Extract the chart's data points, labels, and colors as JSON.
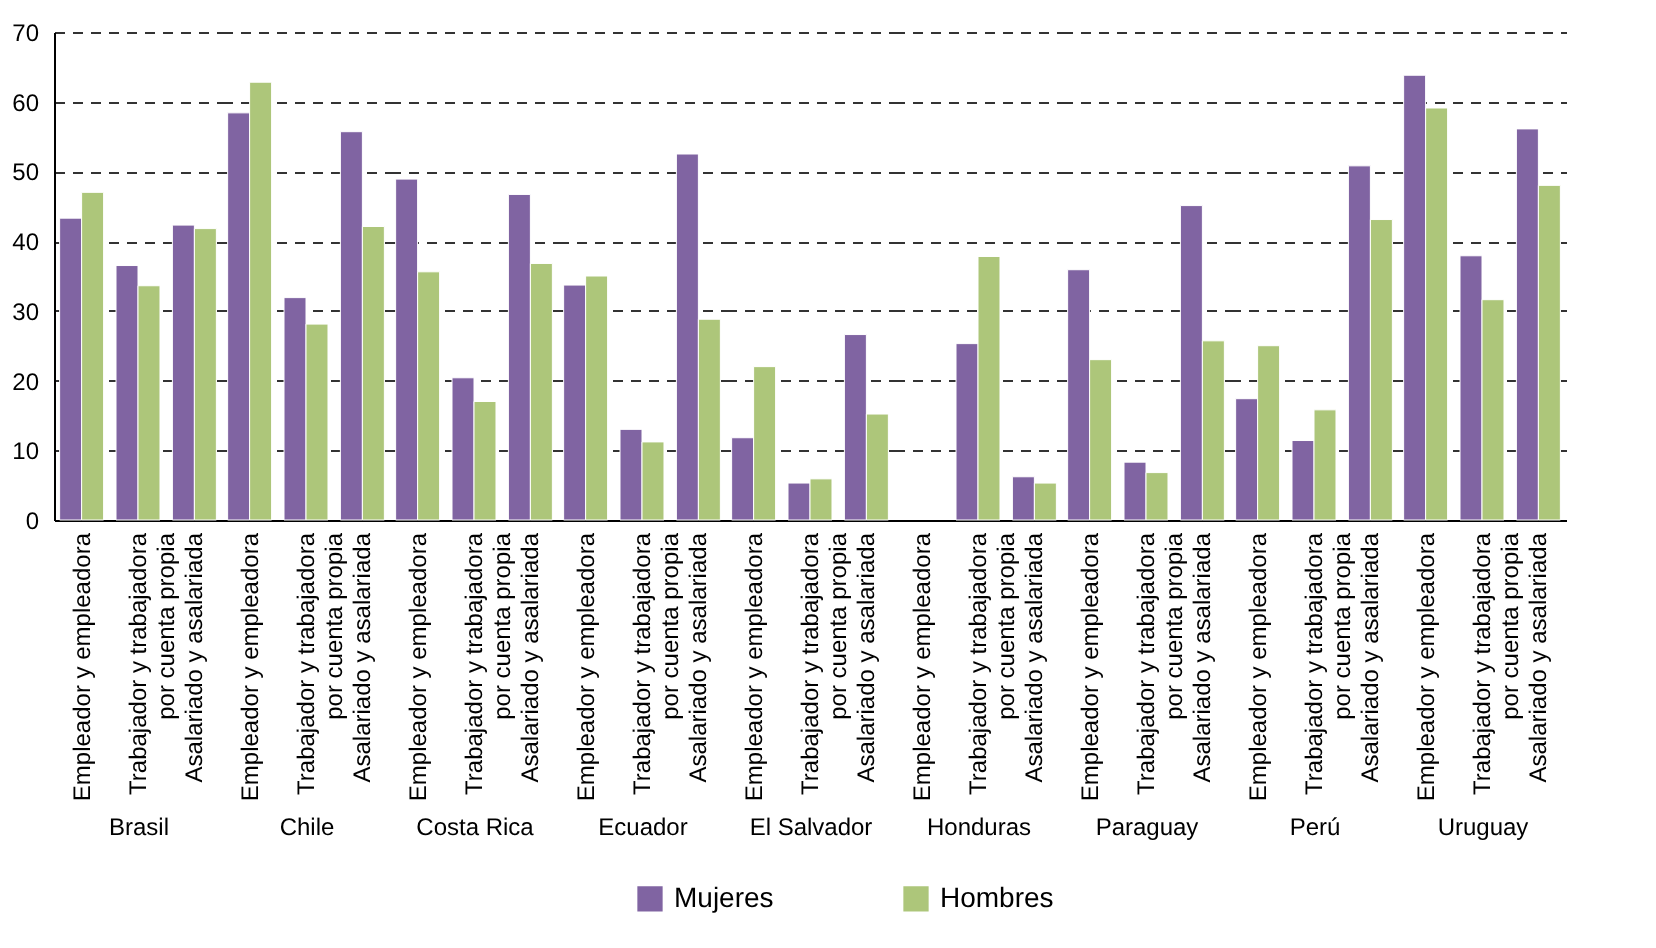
{
  "chart_data": [
    {
      "type": "bar",
      "xlabel": "Brasil",
      "categories": [
        "Empleador y empleadora",
        "Trabajador y trabajadora por cuenta propia",
        "Asalariado y asalariada"
      ],
      "series": [
        {
          "name": "Mujeres",
          "color": "#8064a2",
          "values": [
            43.3,
            36.5,
            42.3
          ]
        },
        {
          "name": "Hombres",
          "color": "#adc67a",
          "values": [
            47.0,
            33.6,
            41.8
          ]
        }
      ],
      "ylim": [
        0,
        70
      ],
      "yticks": [
        0,
        10,
        20,
        30,
        40,
        50,
        60,
        70
      ],
      "grid": "y",
      "legend": "bottom"
    },
    {
      "type": "bar",
      "xlabel": "Chile",
      "categories": [
        "Empleador y empleadora",
        "Trabajador y trabajadora por cuenta propia",
        "Asalariado y asalariada"
      ],
      "series": [
        {
          "color": "#8064a2",
          "values": [
            58.4,
            31.9,
            55.7
          ]
        },
        {
          "color": "#adc67a",
          "values": [
            62.8,
            28.1,
            42.1
          ]
        }
      ],
      "ylim": [
        0,
        70
      ],
      "yticks": [
        0,
        10,
        20,
        30,
        40,
        50,
        60,
        70
      ],
      "grid": "y",
      "tick_labels": "x"
    },
    {
      "type": "bar",
      "xlabel": "Costa Rica",
      "categories": [
        "Empleador y empleadora",
        "Trabajador y trabajadora por cuenta propia",
        "Asalariado y asalariada"
      ],
      "series": [
        {
          "color": "#8064a2",
          "values": [
            48.9,
            20.4,
            46.7
          ]
        },
        {
          "color": "#adc67a",
          "values": [
            35.6,
            17.0,
            36.8
          ]
        }
      ],
      "ylim": [
        0,
        70
      ],
      "yticks": [
        0,
        10,
        20,
        30,
        40,
        50,
        60,
        70
      ],
      "grid": "y",
      "tick_labels": "x"
    },
    {
      "type": "bar",
      "xlabel": "Ecuador",
      "categories": [
        "Empleador y empleadora",
        "Trabajador y trabajadora por cuenta propia",
        "Asalariado y asalariada"
      ],
      "series": [
        {
          "color": "#8064a2",
          "values": [
            33.7,
            13.0,
            52.5
          ]
        },
        {
          "color": "#adc67a",
          "values": [
            35.0,
            11.2,
            28.8
          ]
        }
      ],
      "ylim": [
        0,
        70
      ],
      "yticks": [
        0,
        10,
        20,
        30,
        40,
        50,
        60,
        70
      ],
      "grid": "y",
      "tick_labels": "x"
    },
    {
      "type": "bar",
      "xlabel": "El Salvador",
      "categories": [
        "Empleador y empleadora",
        "Trabajador y trabajadora por cuenta propia",
        "Asalariado y asalariada"
      ],
      "series": [
        {
          "color": "#8064a2",
          "values": [
            11.8,
            5.3,
            26.6
          ]
        },
        {
          "color": "#adc67a",
          "values": [
            22.0,
            5.9,
            15.2
          ]
        }
      ],
      "ylim": [
        0,
        70
      ],
      "yticks": [
        0,
        10,
        20,
        30,
        40,
        50,
        60,
        70
      ],
      "grid": "y",
      "tick_labels": "x"
    },
    {
      "type": "bar",
      "xlabel": "Honduras",
      "categories": [
        "Empleador y empleadora",
        "Trabajador y trabajadora por cuenta propia",
        "Asalariado y asalariada"
      ],
      "series": [
        {
          "color": "#8064a2",
          "values": [
            null,
            25.3,
            6.2
          ]
        },
        {
          "color": "#adc67a",
          "values": [
            null,
            37.8,
            5.3
          ]
        }
      ],
      "ylim": [
        0,
        70
      ],
      "yticks": [
        0,
        10,
        20,
        30,
        40,
        50,
        60,
        70
      ],
      "grid": "y",
      "tick_labels": "x"
    },
    {
      "type": "bar",
      "xlabel": "Paraguay",
      "categories": [
        "Empleador y empleadora",
        "Trabajador y trabajadora por cuenta propia",
        "Asalariado y asalariada"
      ],
      "series": [
        {
          "color": "#8064a2",
          "values": [
            35.9,
            8.3,
            45.1
          ]
        },
        {
          "color": "#adc67a",
          "values": [
            23.0,
            6.8,
            25.7
          ]
        }
      ],
      "ylim": [
        0,
        70
      ],
      "yticks": [
        0,
        10,
        20,
        30,
        40,
        50,
        60,
        70
      ],
      "grid": "y",
      "tick_labels": "x"
    },
    {
      "type": "bar",
      "xlabel": "Perú",
      "categories": [
        "Empleador y empleadora",
        "Trabajador y trabajadora por cuenta propia",
        "Asalariado y asalariada"
      ],
      "series": [
        {
          "color": "#8064a2",
          "values": [
            17.4,
            11.4,
            50.8
          ]
        },
        {
          "color": "#adc67a",
          "values": [
            25.0,
            15.8,
            43.1
          ]
        }
      ],
      "ylim": [
        0,
        70
      ],
      "yticks": [
        0,
        10,
        20,
        30,
        40,
        50,
        60,
        70
      ],
      "grid": "y",
      "tick_labels": "x"
    },
    {
      "type": "bar",
      "xlabel": "Uruguay",
      "categories": [
        "Empleador y empleadora",
        "Trabajador y trabajadora por cuenta propia",
        "Asalariado y asalariada"
      ],
      "series": [
        {
          "color": "#8064a2",
          "values": [
            63.8,
            37.9,
            56.1
          ]
        },
        {
          "color": "#adc67a",
          "values": [
            59.1,
            31.6,
            48.0
          ]
        }
      ],
      "ylim": [
        0,
        70
      ],
      "yticks": [
        0,
        10,
        20,
        30,
        40,
        50,
        60,
        70
      ],
      "grid": "y",
      "tick_labels": "x"
    }
  ]
}
